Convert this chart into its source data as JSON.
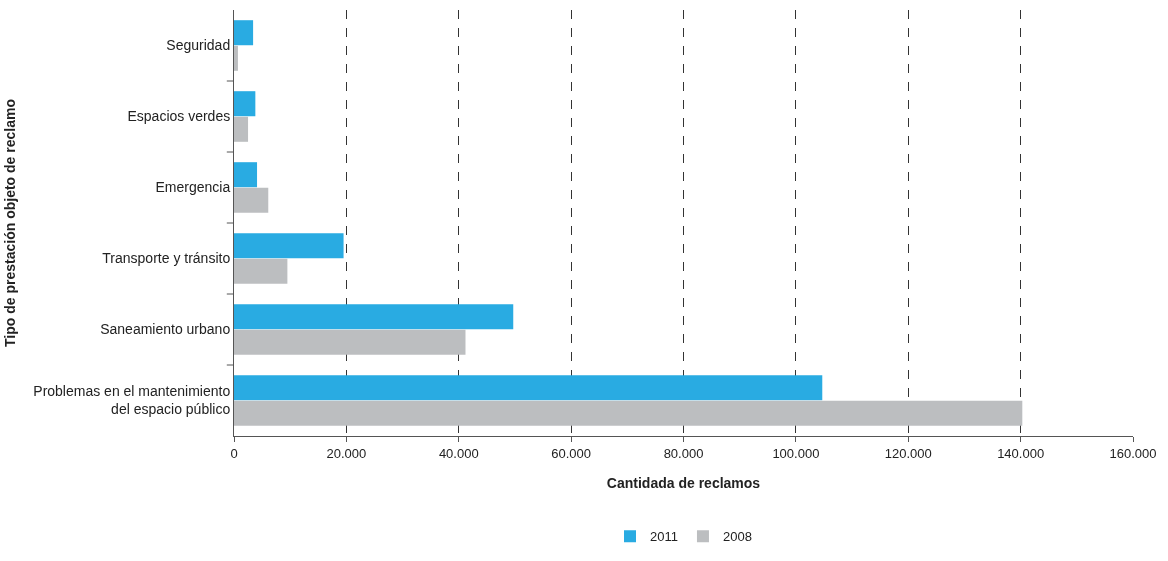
{
  "chart_data": {
    "type": "bar",
    "orientation": "horizontal",
    "xlabel": "Cantidada de reclamos",
    "ylabel": "Tipo de prestación objeto de reclamo",
    "categories": [
      "Seguridad",
      "Espacios verdes",
      "Emergencia",
      "Transporte y tránsito",
      "Saneamiento urbano",
      "Problemas en el mantenimiento del espacio público"
    ],
    "series": [
      {
        "name": "2011",
        "color": "#29abe2",
        "values": [
          3400,
          3800,
          4100,
          19500,
          49700,
          104700
        ]
      },
      {
        "name": "2008",
        "color": "#bcbec0",
        "values": [
          700,
          2500,
          6100,
          9500,
          41200,
          140300
        ]
      }
    ],
    "xlim": [
      0,
      160000
    ],
    "xticks": [
      0,
      {
        "value": 20000,
        "label": "20.000"
      },
      {
        "value": 40000,
        "label": "40.000"
      },
      {
        "value": 60000,
        "label": "60.000"
      },
      {
        "value": 80000,
        "label": "80.000"
      },
      {
        "value": 100000,
        "label": "100.000"
      },
      {
        "value": 120000,
        "label": "120.000"
      },
      {
        "value": 140000,
        "label": "140.000"
      },
      {
        "value": 160000,
        "label": "160.000"
      }
    ],
    "grid": "x",
    "legend": "bottom"
  }
}
